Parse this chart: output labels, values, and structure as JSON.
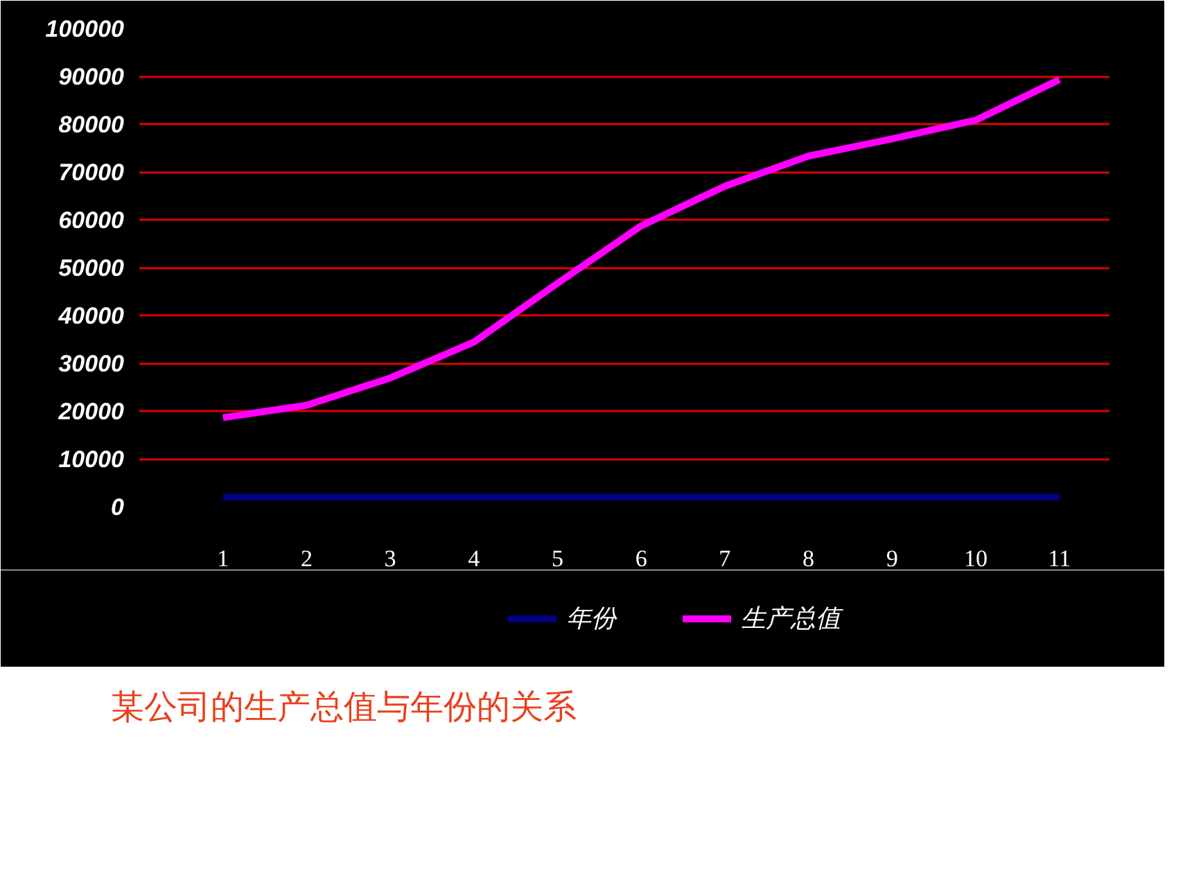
{
  "chart_data": {
    "type": "line",
    "categories": [
      "1",
      "2",
      "3",
      "4",
      "5",
      "6",
      "7",
      "8",
      "9",
      "10",
      "11"
    ],
    "series": [
      {
        "name": "年份",
        "color": "#000080",
        "values": [
          2000,
          2000,
          2000,
          2000,
          2000,
          2000,
          2000,
          2000,
          2000,
          2000,
          2000
        ]
      },
      {
        "name": "生产总值",
        "color": "#ff00ff",
        "values": [
          18600,
          21200,
          26900,
          34400,
          46700,
          58700,
          67000,
          73300,
          76900,
          80800,
          89300
        ]
      }
    ],
    "ylim": [
      0,
      100000
    ],
    "yticks": [
      0,
      10000,
      20000,
      30000,
      40000,
      50000,
      60000,
      70000,
      80000,
      90000,
      100000
    ],
    "grid": "y",
    "legend": "bottom",
    "marker": "none",
    "line_style": "solid",
    "annotations": [
      "某公司的生产总值与年份的关系"
    ]
  }
}
